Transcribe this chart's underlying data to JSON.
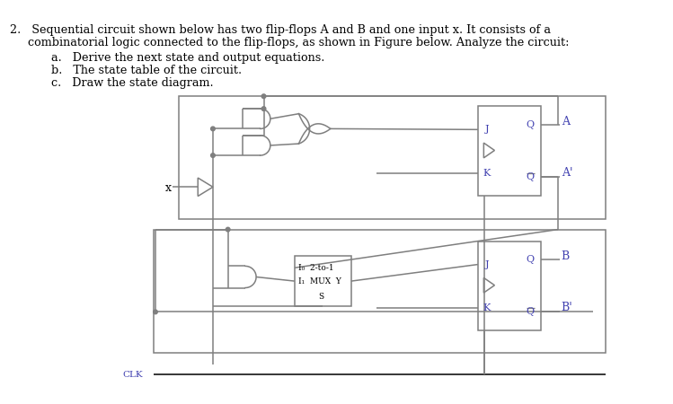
{
  "bg_color": "#ffffff",
  "lc": "#7f7f7f",
  "bc": "#4040b0",
  "figw": 7.49,
  "figh": 4.5,
  "dpi": 100,
  "text": {
    "line1": "2.   Sequential circuit shown below has two flip-flops A and B and one input x. It consists of a",
    "line2": "     combinatorial logic connected to the flip-flops, as shown in Figure below. Analyze the circuit:",
    "item_a": "a.   Derive the next state and output equations.",
    "item_b": "b.   The state table of the circuit.",
    "item_c": "c.   Draw the state diagram."
  }
}
